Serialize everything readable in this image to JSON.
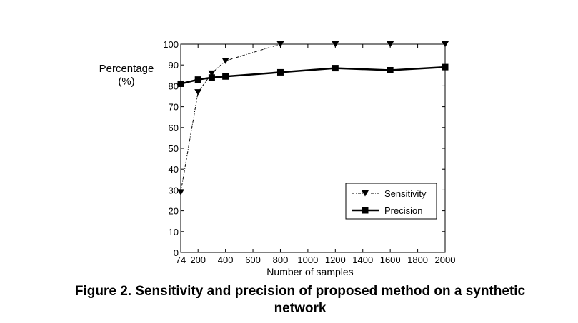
{
  "chart_data": {
    "type": "line",
    "x": [
      74,
      200,
      300,
      400,
      800,
      1200,
      1600,
      2000
    ],
    "xticks": [
      74,
      200,
      400,
      600,
      800,
      1000,
      1200,
      1400,
      1600,
      1800,
      2000
    ],
    "xlim": [
      74,
      2000
    ],
    "yticks": [
      0,
      10,
      20,
      30,
      40,
      50,
      60,
      70,
      80,
      90,
      100
    ],
    "ylim": [
      0,
      100
    ],
    "xlabel": "Number of samples",
    "ylabel_line1": "Percentage",
    "ylabel_line2": "(%)",
    "grid": false,
    "legend_position": "bottom-right",
    "series": [
      {
        "name": "Sensitivity",
        "values": [
          29,
          77,
          86,
          92,
          100,
          100,
          100,
          100
        ],
        "line_style": "dash-dot",
        "marker": "triangle-down",
        "color": "#000000"
      },
      {
        "name": "Precision",
        "values": [
          81,
          83,
          84,
          84.5,
          86.5,
          88.5,
          87.5,
          89
        ],
        "line_style": "solid-thick",
        "marker": "square",
        "color": "#000000"
      }
    ]
  },
  "caption": {
    "line1": "Figure 2. Sensitivity and precision of proposed method on a synthetic",
    "line2": "network"
  }
}
